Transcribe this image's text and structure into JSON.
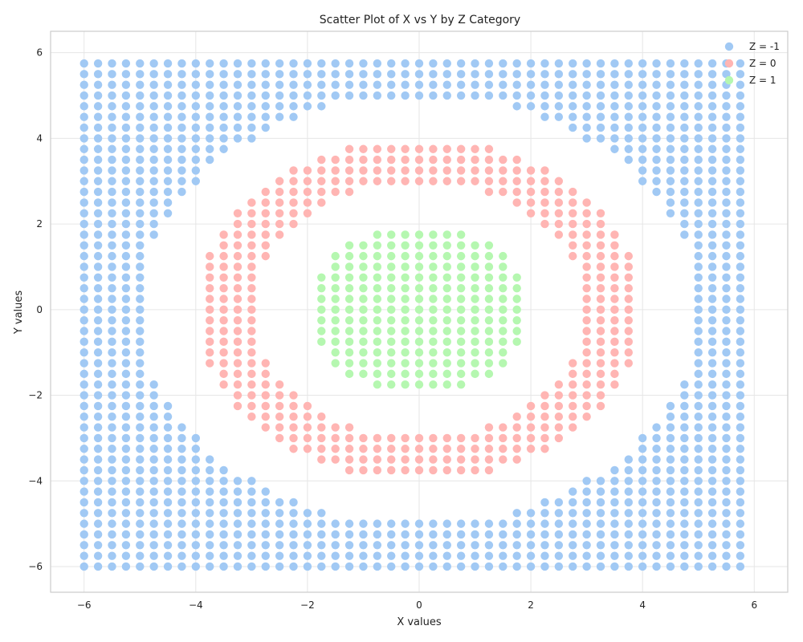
{
  "chart_data": {
    "type": "scatter",
    "title": "Scatter Plot of X vs Y by Z Category",
    "xlabel": "X values",
    "ylabel": "Y values",
    "xlim": [
      -6.6,
      6.6
    ],
    "ylim": [
      -6.6,
      6.5
    ],
    "xticks": [
      -6,
      -4,
      -2,
      0,
      2,
      4,
      6
    ],
    "yticks": [
      -6,
      -4,
      -2,
      0,
      2,
      4,
      6
    ],
    "xtick_labels": [
      "−6",
      "−4",
      "−2",
      "0",
      "2",
      "4",
      "6"
    ],
    "ytick_labels": [
      "−6",
      "−4",
      "−2",
      "0",
      "2",
      "4",
      "6"
    ],
    "grid": true,
    "legend_position": "top-right",
    "grid_definition": {
      "x_start": -6,
      "x_end": 5.75,
      "y_start": -6,
      "y_end": 5.75,
      "step": 0.25,
      "rule": "z = 1 if x^2 + y^2 < 4; z = 0 if 9 <= x^2 + y^2 < 16; z = -1 if x^2 + y^2 >= 25; no point otherwise"
    },
    "series": [
      {
        "name": "Z = -1",
        "z": -1,
        "color": "#a1c9f4"
      },
      {
        "name": "Z = 0",
        "z": 0,
        "color": "#ffb5b3"
      },
      {
        "name": "Z = 1",
        "z": 1,
        "color": "#b5f7b0"
      }
    ]
  }
}
